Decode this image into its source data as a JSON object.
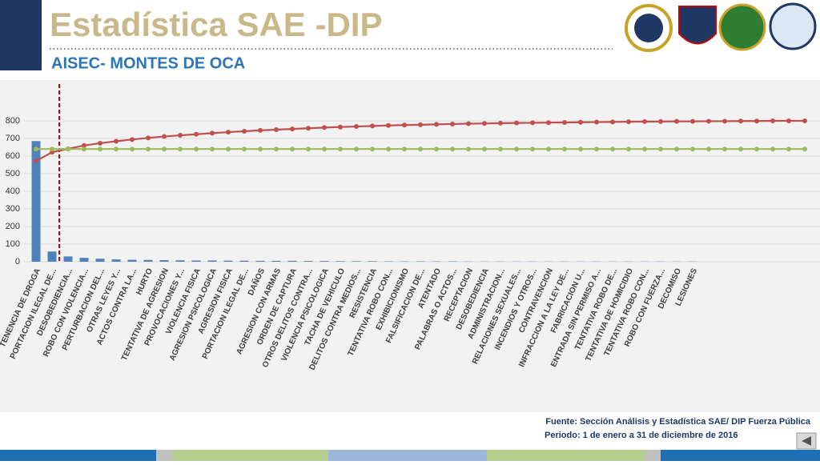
{
  "header": {
    "title": "Estadística SAE -DIP",
    "subtitle": "AISEC- MONTES DE OCA"
  },
  "footer": {
    "source": "Fuente: Sección Análisis y Estadística SAE/ DIP Fuerza Pública",
    "period": "Periodo: 1 de enero a 31 de diciembre de 2016"
  },
  "chart_data": {
    "type": "bar",
    "categories": [
      "TENENCIA DE DROGA",
      "PORTACION ILEGAL DE...",
      "DESOBEDIENCIA...",
      "ROBO CON VIOLENCIA...",
      "PERTURBACION DEL...",
      "OTRAS LEYES Y...",
      "ACTOS CONTRA LA...",
      "HURTO",
      "TENTATIVA DE AGRESION",
      "PROVOCACIONES Y...",
      "VIOLENCIA FISICA",
      "AGRESION PSICOLOGICA",
      "AGRESION FISICA",
      "PORTACION ILEGAL DE...",
      "DAÑOS",
      "AGRESION CON ARMAS",
      "ORDEN DE CAPTURA",
      "OTROS DELITOS CONTRA...",
      "VIOLENCIA PSICOLOGICA",
      "TACHA DE VEHICULO",
      "DELITOS CONTRA MEDIOS...",
      "RESISTENCIA",
      "TENTATIVA ROBO CON...",
      "EXHIBICIONISMO",
      "FALSIFICACION DE...",
      "ATENTADO",
      "PALABRAS O ACTOS...",
      "RECEPTACION",
      "DESOBEDIENCIA",
      "ADMINISTRACION...",
      "RELACIONES SEXUALES...",
      "INCENDIOS Y OTROS...",
      "CONTRAVENCION",
      "INFRACCION A LA LEY DE...",
      "FABRICACION U...",
      "ENTRADA SIN PERMISO A...",
      "TENTATIVA ROBO DE...",
      "TENTATIVA DE HOMICIDIO",
      "TENTATIVA ROBO CON...",
      "ROBO CON FUERZA...",
      "DECOMISO",
      "LESIONES",
      null,
      null,
      null,
      null,
      null,
      null,
      null
    ],
    "series": [
      {
        "type": "bar",
        "color": "#4f81bd",
        "values": [
          685,
          58,
          30,
          22,
          17,
          13,
          11,
          10,
          9,
          8,
          7,
          7,
          6,
          6,
          5,
          5,
          5,
          4,
          4,
          3,
          3,
          3,
          2,
          2,
          2,
          2,
          2,
          1,
          1,
          1,
          1,
          1,
          1,
          1,
          1,
          1,
          1,
          1,
          1,
          1,
          1,
          1,
          null,
          null,
          null,
          null,
          null,
          null,
          null
        ]
      },
      {
        "type": "line",
        "color": "#c0504d",
        "values": [
          572,
          622,
          641,
          660,
          673,
          684,
          694,
          703,
          711,
          718,
          724,
          730,
          736,
          741,
          746,
          750,
          754,
          758,
          762,
          765,
          768,
          771,
          774,
          776,
          778,
          780,
          782,
          784,
          785,
          787,
          788,
          789,
          790,
          791,
          792,
          793,
          794,
          795,
          796,
          796,
          797,
          797,
          798,
          798,
          799,
          799,
          800,
          800,
          800
        ]
      },
      {
        "type": "line",
        "color": "#9bbb59",
        "values": [
          640,
          640,
          640,
          640,
          640,
          640,
          640,
          640,
          640,
          640,
          640,
          640,
          640,
          640,
          640,
          640,
          640,
          640,
          640,
          640,
          640,
          640,
          640,
          640,
          640,
          640,
          640,
          640,
          640,
          640,
          640,
          640,
          640,
          640,
          640,
          640,
          640,
          640,
          640,
          640,
          640,
          640,
          640,
          640,
          640,
          640,
          640,
          640,
          640
        ]
      }
    ],
    "ylim": [
      0,
      800
    ],
    "yticks": [
      0,
      100,
      200,
      300,
      400,
      500,
      600,
      700,
      800
    ],
    "grid": true
  }
}
